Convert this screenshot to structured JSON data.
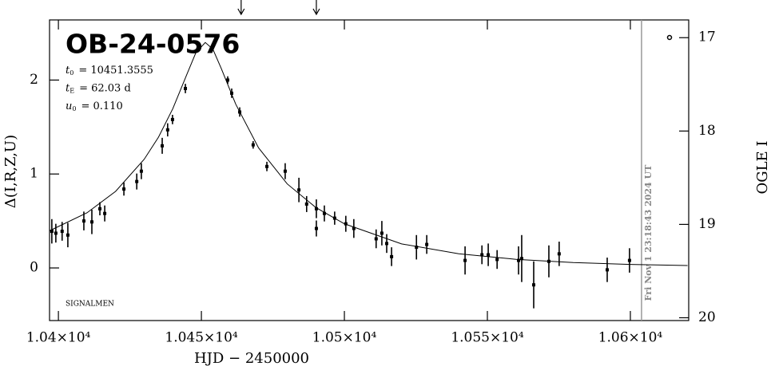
{
  "chart_data": {
    "type": "scatter",
    "title": "OB-24-0576",
    "params": [
      {
        "symbol": "t",
        "sub": "0",
        "text": "= 10451.3555"
      },
      {
        "symbol": "t",
        "sub": "E",
        "text": "= 62.03 d"
      },
      {
        "symbol": "u",
        "sub": "0",
        "text": "= 0.110"
      }
    ],
    "annotation": "SIGNALMEN",
    "date_label": "Fri Nov  1 23:18:43 2024 UT",
    "date_x": 10603.9,
    "arrows_x": [
      10463.9,
      10490.2
    ],
    "xlabel": "HJD − 2450000",
    "ylabel": "Δ(I,R,Z,U)",
    "y2label": "OGLE I",
    "xlim": [
      10396.9,
      10620.4
    ],
    "ylim": [
      -0.56,
      2.64
    ],
    "y2lim": [
      20.03,
      16.81
    ],
    "xticks": [
      {
        "value": 10400,
        "label": "1.04×10⁴"
      },
      {
        "value": 10450,
        "label": "1.045×10⁴"
      },
      {
        "value": 10500,
        "label": "1.05×10⁴"
      },
      {
        "value": 10550,
        "label": "1.055×10⁴"
      },
      {
        "value": 10600,
        "label": "1.06×10⁴"
      }
    ],
    "yticks": [
      0,
      1,
      2
    ],
    "y2ticks": [
      17,
      18,
      19,
      20
    ],
    "series": [
      {
        "name": "data",
        "color": "#000000",
        "x": [
          10397.7,
          10399.1,
          10401.3,
          10403.3,
          10408.9,
          10411.7,
          10414.5,
          10416.2,
          10422.9,
          10427.4,
          10429.0,
          10436.3,
          10438.2,
          10439.9,
          10444.4,
          10459.2,
          10460.6,
          10463.4,
          10468.1,
          10472.9,
          10479.3,
          10484.1,
          10486.8,
          10490.2,
          10490.2,
          10493.0,
          10496.6,
          10500.5,
          10503.3,
          10511.1,
          10513.1,
          10514.8,
          10516.5,
          10525.2,
          10528.8,
          10542.2,
          10548.1,
          10550.3,
          10553.4,
          10560.9,
          10562.0,
          10566.2,
          10571.5,
          10575.1,
          10591.9,
          10599.7
        ],
        "values": [
          0.39,
          0.37,
          0.39,
          0.35,
          0.5,
          0.49,
          0.63,
          0.58,
          0.84,
          0.92,
          1.03,
          1.3,
          1.47,
          1.58,
          1.91,
          2.0,
          1.86,
          1.66,
          1.31,
          1.08,
          1.03,
          0.83,
          0.68,
          0.63,
          0.42,
          0.58,
          0.53,
          0.47,
          0.42,
          0.31,
          0.37,
          0.26,
          0.12,
          0.22,
          0.25,
          0.08,
          0.14,
          0.14,
          0.09,
          0.08,
          0.1,
          -0.18,
          0.07,
          0.15,
          -0.02,
          0.08
        ],
        "errors": [
          0.13,
          0.1,
          0.1,
          0.13,
          0.1,
          0.13,
          0.07,
          0.085,
          0.07,
          0.085,
          0.085,
          0.085,
          0.07,
          0.05,
          0.05,
          0.04,
          0.05,
          0.05,
          0.04,
          0.05,
          0.085,
          0.13,
          0.085,
          0.1,
          0.085,
          0.085,
          0.07,
          0.085,
          0.1,
          0.1,
          0.13,
          0.1,
          0.1,
          0.13,
          0.1,
          0.15,
          0.1,
          0.12,
          0.1,
          0.15,
          0.25,
          0.25,
          0.17,
          0.13,
          0.13,
          0.13
        ]
      },
      {
        "name": "model",
        "color": "#000000",
        "x": [
          10397,
          10410,
          10420,
          10430,
          10435,
          10440,
          10445,
          10448,
          10451.36,
          10454,
          10457,
          10462,
          10470,
          10480,
          10490,
          10500,
          10520,
          10540,
          10560,
          10580,
          10600,
          10620
        ],
        "values": [
          0.397,
          0.587,
          0.815,
          1.157,
          1.392,
          1.695,
          2.067,
          2.286,
          2.4,
          2.33,
          2.12,
          1.744,
          1.278,
          0.895,
          0.644,
          0.47,
          0.256,
          0.151,
          0.0916,
          0.0574,
          0.0373,
          0.0256
        ]
      }
    ]
  }
}
